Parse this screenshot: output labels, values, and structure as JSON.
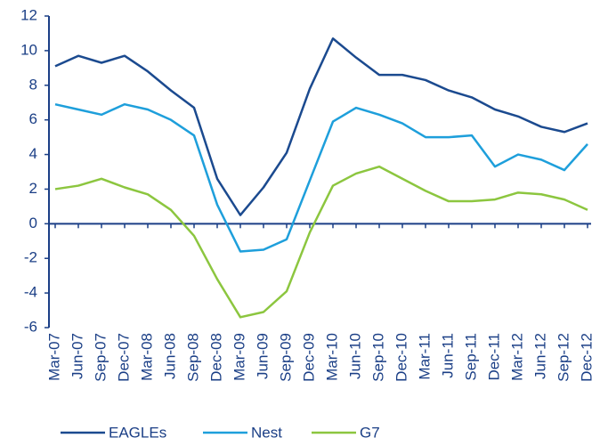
{
  "chart_data": {
    "type": "line",
    "categories": [
      "Mar-07",
      "Jun-07",
      "Sep-07",
      "Dec-07",
      "Mar-08",
      "Jun-08",
      "Sep-08",
      "Dec-08",
      "Mar-09",
      "Jun-09",
      "Sep-09",
      "Dec-09",
      "Mar-10",
      "Jun-10",
      "Sep-10",
      "Dec-10",
      "Mar-11",
      "Jun-11",
      "Sep-11",
      "Dec-11",
      "Mar-12",
      "Jun-12",
      "Sep-12",
      "Dec-12"
    ],
    "series": [
      {
        "name": "EAGLEs",
        "color": "#1b4a8f",
        "values": [
          9.1,
          9.7,
          9.3,
          9.7,
          8.8,
          7.7,
          6.7,
          2.6,
          0.5,
          2.1,
          4.1,
          7.8,
          10.7,
          9.6,
          8.6,
          8.6,
          8.3,
          7.7,
          7.3,
          6.6,
          6.2,
          5.6,
          5.3,
          5.8
        ]
      },
      {
        "name": "Nest",
        "color": "#1e9fdb",
        "values": [
          6.9,
          6.6,
          6.3,
          6.9,
          6.6,
          6.0,
          5.1,
          1.1,
          -1.6,
          -1.5,
          -0.9,
          2.5,
          5.9,
          6.7,
          6.3,
          5.8,
          5.0,
          5.0,
          5.1,
          3.3,
          4.0,
          3.7,
          3.1,
          4.6
        ]
      },
      {
        "name": "G7",
        "color": "#8cc63f",
        "values": [
          2.0,
          2.2,
          2.6,
          2.1,
          1.7,
          0.8,
          -0.7,
          -3.2,
          -5.4,
          -5.1,
          -3.9,
          -0.5,
          2.2,
          2.9,
          3.3,
          2.6,
          1.9,
          1.3,
          1.3,
          1.4,
          1.8,
          1.7,
          1.4,
          0.8
        ]
      }
    ],
    "ylim": [
      -6,
      12
    ],
    "yticks": [
      -6,
      -4,
      -2,
      0,
      2,
      4,
      6,
      8,
      10,
      12
    ],
    "grid": false,
    "legend": "bottom"
  }
}
